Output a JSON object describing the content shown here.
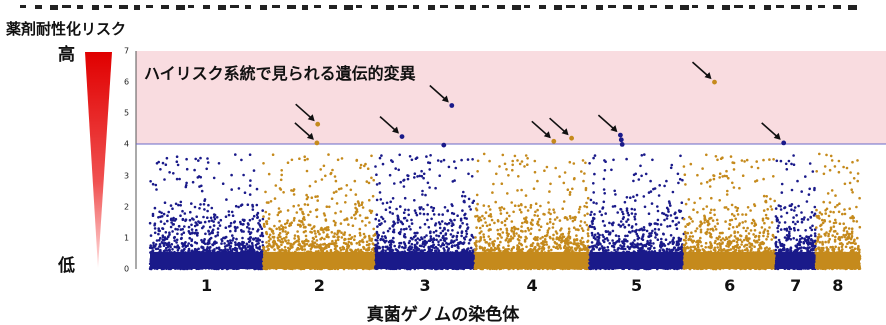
{
  "title": "薬剤耐性化リスク",
  "risk_scale": {
    "high": "高",
    "low": "低"
  },
  "annotation": "ハイリスク系統で見られる遺伝的変異",
  "colors": {
    "odd_chromosome": "#1a1a8a",
    "even_chromosome": "#c58a1c",
    "high_risk_band": "#f9dce0",
    "threshold": "#6a6ac8",
    "triangle": "#e00000",
    "arrow": "#111111"
  },
  "chart_data": {
    "type": "scatter",
    "title": "薬剤耐性化リスク",
    "xlabel": "真菌ゲノムの染色体",
    "ylabel": "",
    "ylim": [
      0,
      7
    ],
    "yticks": [
      0,
      1,
      2,
      3,
      4,
      5,
      6,
      7
    ],
    "threshold": 4,
    "high_risk_region": [
      4,
      7
    ],
    "chromosomes": [
      {
        "label": "1",
        "range": [
          0.0,
          2.55
        ]
      },
      {
        "label": "2",
        "range": [
          2.55,
          5.08
        ]
      },
      {
        "label": "3",
        "range": [
          5.08,
          7.32
        ]
      },
      {
        "label": "4",
        "range": [
          7.32,
          9.9
        ]
      },
      {
        "label": "5",
        "range": [
          9.9,
          12.03
        ]
      },
      {
        "label": "6",
        "range": [
          12.03,
          14.1
        ]
      },
      {
        "label": "7",
        "range": [
          14.1,
          15.0
        ]
      },
      {
        "label": "8",
        "range": [
          15.0,
          16.0
        ]
      }
    ],
    "highlighted_points": [
      {
        "chromosome": "2",
        "position": 3.78,
        "value": 4.65,
        "arrow": true
      },
      {
        "chromosome": "2",
        "position": 3.76,
        "value": 4.05,
        "arrow": true
      },
      {
        "chromosome": "3",
        "position": 5.68,
        "value": 4.25,
        "arrow": true
      },
      {
        "chromosome": "3",
        "position": 6.8,
        "value": 5.25,
        "arrow": true
      },
      {
        "chromosome": "4",
        "position": 9.1,
        "value": 4.1,
        "arrow": true
      },
      {
        "chromosome": "4",
        "position": 9.5,
        "value": 4.2,
        "arrow": true
      },
      {
        "chromosome": "5",
        "position": 10.6,
        "value": 4.3,
        "arrow": true
      },
      {
        "chromosome": "6",
        "position": 12.72,
        "value": 6.0,
        "arrow": true
      },
      {
        "chromosome": "7",
        "position": 14.28,
        "value": 4.05,
        "arrow": true
      },
      {
        "chromosome": "5",
        "position": 10.62,
        "value": 4.15,
        "arrow": false
      },
      {
        "chromosome": "5",
        "position": 10.64,
        "value": 4.0,
        "arrow": false
      },
      {
        "chromosome": "3",
        "position": 6.62,
        "value": 3.98,
        "arrow": false
      }
    ]
  }
}
